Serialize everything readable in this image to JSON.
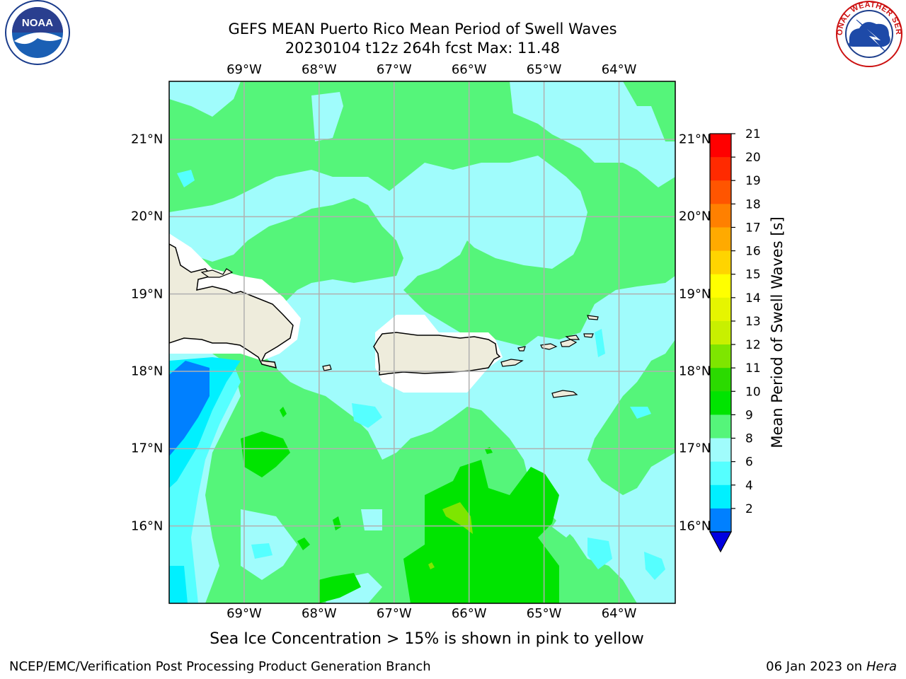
{
  "title": {
    "line1": "GEFS MEAN Puerto Rico Mean Period of Swell Waves",
    "line2": "20230104 t12z 264h fcst   Max: 11.48"
  },
  "logos": {
    "left": "noaa-logo",
    "left_text": "NOAA",
    "right": "nws-logo",
    "right_text": "NATIONAL WEATHER SERVICE"
  },
  "map": {
    "lon_labels": [
      "69°W",
      "68°W",
      "67°W",
      "66°W",
      "65°W",
      "64°W"
    ],
    "lat_labels": [
      "21°N",
      "20°N",
      "19°N",
      "18°N",
      "17°N",
      "16°N"
    ],
    "lon_values": [
      -69,
      -68,
      -67,
      -66,
      -65,
      -64
    ],
    "lat_values": [
      21,
      20,
      19,
      18,
      17,
      16
    ],
    "extent": {
      "lon_min": -70,
      "lon_max": -63.25,
      "lat_min": 15,
      "lat_max": 21.75
    },
    "land_color": "#eeecdc",
    "grid_color": "#b0b0b0"
  },
  "colorbar": {
    "label": "Mean Period of Swell Waves [s]",
    "ticks": [
      "21",
      "20",
      "19",
      "18",
      "17",
      "16",
      "15",
      "14",
      "13",
      "12",
      "11",
      "10",
      "9",
      "8",
      "6",
      "4",
      "2"
    ],
    "tick_values": [
      21,
      20,
      19,
      18,
      17,
      16,
      15,
      14,
      13,
      12,
      11,
      10,
      9,
      8,
      6,
      4,
      2
    ],
    "colors_top_to_bottom": [
      "#ff0000",
      "#ff2a00",
      "#ff5500",
      "#ff8000",
      "#ffaa00",
      "#ffd400",
      "#ffff00",
      "#e6f500",
      "#c8f000",
      "#7ee600",
      "#2bda00",
      "#00e400",
      "#55f57a",
      "#a0fcfc",
      "#55ffff",
      "#00f0ff",
      "#0080ff"
    ],
    "extend_color": "#0000e0"
  },
  "footer": {
    "note": "Sea Ice Concentration > 15% is shown in pink to yellow",
    "left": "NCEP/EMC/Verification Post Processing Product Generation Branch",
    "date": "06 Jan 2023 on ",
    "machine": "Hera"
  }
}
